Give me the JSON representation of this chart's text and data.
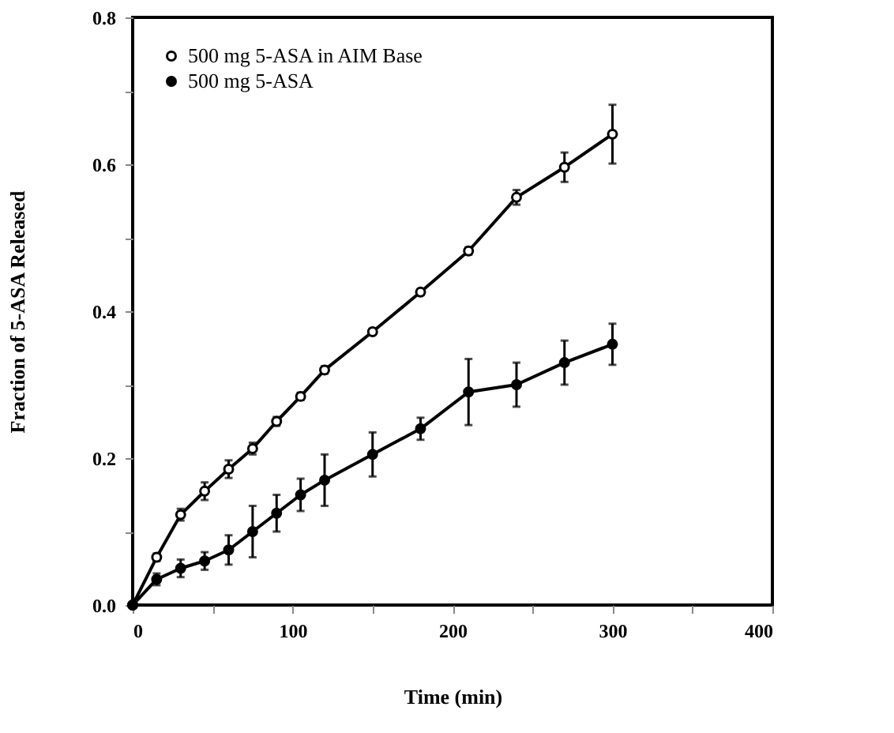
{
  "chart_data": {
    "type": "line",
    "xlabel": "Time (min)",
    "ylabel": "Fraction of 5-ASA Released",
    "x": [
      0,
      15,
      30,
      45,
      60,
      75,
      90,
      105,
      120,
      150,
      180,
      210,
      240,
      270,
      300
    ],
    "series": [
      {
        "name": "500 mg 5-ASA in AIM Base",
        "color": "#000000",
        "values": [
          0.0,
          0.065,
          0.123,
          0.155,
          0.185,
          0.213,
          0.25,
          0.284,
          0.32,
          0.372,
          0.426,
          0.482,
          0.555,
          0.596,
          0.641
        ],
        "errors": [
          null,
          0.005,
          0.008,
          0.012,
          0.012,
          0.008,
          0.006,
          0.005,
          0.005,
          0.004,
          0.004,
          0.005,
          0.01,
          0.02,
          0.04
        ]
      },
      {
        "name": "500 mg 5-ASA",
        "color": "#000000",
        "values": [
          0.0,
          0.035,
          0.05,
          0.06,
          0.075,
          0.1,
          0.125,
          0.15,
          0.17,
          0.205,
          0.24,
          0.29,
          0.3,
          0.33,
          0.355
        ],
        "errors": [
          null,
          0.008,
          0.012,
          0.012,
          0.02,
          0.035,
          0.025,
          0.022,
          0.035,
          0.03,
          0.015,
          0.045,
          0.03,
          0.03,
          0.028
        ]
      }
    ],
    "xlim": [
      0,
      400
    ],
    "ylim": [
      0,
      0.8
    ],
    "xticks": [
      0,
      {
        "value": 50,
        "label": null
      },
      100,
      {
        "value": 150,
        "label": null
      },
      200,
      {
        "value": 250,
        "label": null
      },
      300,
      {
        "value": 350,
        "label": null
      },
      400
    ],
    "yticks": [
      {
        "value": 0,
        "label": "0.0"
      },
      {
        "value": 0.1,
        "label": null
      },
      {
        "value": 0.2,
        "label": "0.2"
      },
      {
        "value": 0.3,
        "label": null
      },
      {
        "value": 0.4,
        "label": "0.4"
      },
      {
        "value": 0.5,
        "label": null
      },
      {
        "value": 0.6,
        "label": "0.6"
      },
      {
        "value": 0.7,
        "label": null
      },
      {
        "value": 0.8,
        "label": "0.8"
      }
    ],
    "legend": "top left",
    "marker": "circle",
    "line_style": "solid",
    "grid": false
  }
}
